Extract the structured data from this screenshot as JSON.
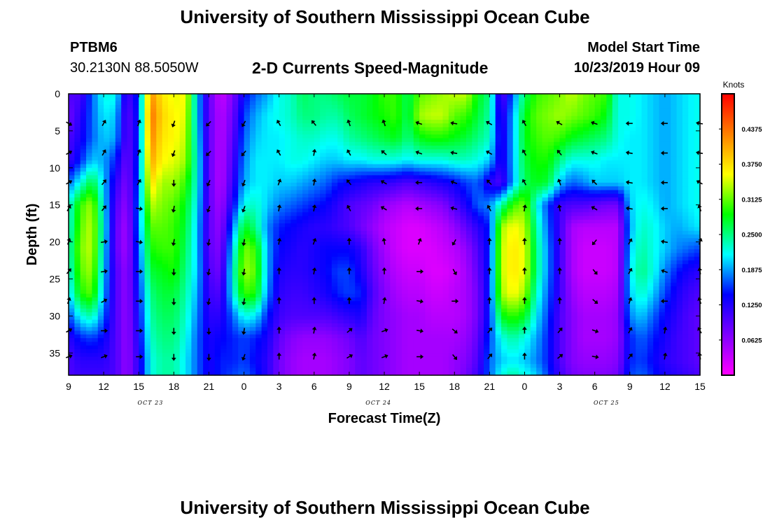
{
  "header": {
    "title": "University of Southern Mississippi Ocean Cube",
    "footer_title": "University of Southern Mississippi Ocean Cube",
    "station": "PTBM6",
    "coords": "30.2130N 88.5050W",
    "plot_title": "2-D Currents Speed-Magnitude",
    "model_start_label": "Model Start Time",
    "model_start_value": "10/23/2019 Hour 09"
  },
  "chart_data": {
    "type": "heatmap",
    "title": "2-D Currents Speed-Magnitude",
    "xlabel": "Forecast Time(Z)",
    "ylabel": "Depth (ft)",
    "x_ticks": [
      "9",
      "12",
      "15",
      "18",
      "21",
      "0",
      "3",
      "6",
      "9",
      "12",
      "15",
      "18",
      "21",
      "0",
      "3",
      "6",
      "9",
      "12",
      "15"
    ],
    "x_tick_hours": [
      0,
      3,
      6,
      9,
      12,
      15,
      18,
      21,
      24,
      27,
      30,
      33,
      36,
      39,
      42,
      45,
      48,
      51,
      54
    ],
    "date_labels": [
      {
        "label": "OCT 23",
        "hour": 7
      },
      {
        "label": "OCT 24",
        "hour": 26.5
      },
      {
        "label": "OCT 25",
        "hour": 46
      }
    ],
    "y_ticks": [
      0,
      5,
      10,
      15,
      20,
      25,
      30,
      35
    ],
    "xlim": [
      0,
      54
    ],
    "ylim": [
      38,
      0
    ],
    "colorbar": {
      "unit": "Knots",
      "ticks": [
        "0.4375",
        "0.3750",
        "0.3125",
        "0.2500",
        "0.1875",
        "0.1250",
        "0.0625"
      ],
      "tick_values": [
        0.4375,
        0.375,
        0.3125,
        0.25,
        0.1875,
        0.125,
        0.0625
      ],
      "range": [
        0,
        0.5
      ],
      "colors": [
        "#ff00ff",
        "#7f00ff",
        "#0000ff",
        "#00ffff",
        "#00ff00",
        "#ffff00",
        "#ff8000",
        "#ff0000"
      ]
    },
    "speed_grid": {
      "hours": [
        0,
        1,
        2,
        3,
        4,
        5,
        6,
        7,
        8,
        9,
        10,
        11,
        12,
        13,
        14,
        15,
        16,
        17,
        18,
        19,
        20,
        21,
        22,
        23,
        24,
        25,
        26,
        27,
        28,
        29,
        30,
        31,
        32,
        33,
        34,
        35,
        36,
        37,
        38,
        39,
        40,
        41,
        42,
        43,
        44,
        45,
        46,
        47,
        48,
        49,
        50,
        51,
        52,
        53,
        54
      ],
      "depths_ft": [
        0,
        3,
        6,
        9,
        12,
        15,
        18,
        21,
        24,
        27,
        30,
        33,
        36,
        38
      ],
      "values": [
        [
          0.1,
          0.1,
          0.17,
          0.22,
          0.22,
          0.1,
          0.16,
          0.42,
          0.37,
          0.35,
          0.36,
          0.2,
          0.09,
          0.03,
          0.07,
          0.14,
          0.17,
          0.19,
          0.22,
          0.23,
          0.26,
          0.25,
          0.25,
          0.26,
          0.27,
          0.27,
          0.28,
          0.3,
          0.3,
          0.26,
          0.31,
          0.32,
          0.33,
          0.34,
          0.34,
          0.28,
          0.25,
          0.09,
          0.17,
          0.26,
          0.3,
          0.31,
          0.32,
          0.34,
          0.32,
          0.31,
          0.3,
          0.22,
          0.22,
          0.21,
          0.2,
          0.19,
          0.2,
          0.21,
          0.22
        ],
        [
          0.08,
          0.12,
          0.17,
          0.21,
          0.2,
          0.09,
          0.15,
          0.44,
          0.38,
          0.36,
          0.35,
          0.2,
          0.09,
          0.04,
          0.08,
          0.16,
          0.19,
          0.21,
          0.22,
          0.23,
          0.25,
          0.25,
          0.24,
          0.24,
          0.26,
          0.27,
          0.28,
          0.29,
          0.3,
          0.26,
          0.33,
          0.34,
          0.34,
          0.31,
          0.3,
          0.27,
          0.24,
          0.11,
          0.19,
          0.28,
          0.31,
          0.32,
          0.33,
          0.32,
          0.31,
          0.3,
          0.28,
          0.22,
          0.22,
          0.21,
          0.2,
          0.19,
          0.2,
          0.21,
          0.22
        ],
        [
          0.1,
          0.13,
          0.17,
          0.2,
          0.19,
          0.09,
          0.15,
          0.43,
          0.37,
          0.36,
          0.34,
          0.21,
          0.09,
          0.04,
          0.09,
          0.17,
          0.2,
          0.21,
          0.21,
          0.22,
          0.23,
          0.23,
          0.22,
          0.22,
          0.24,
          0.25,
          0.26,
          0.27,
          0.28,
          0.25,
          0.28,
          0.29,
          0.29,
          0.28,
          0.27,
          0.25,
          0.23,
          0.12,
          0.19,
          0.28,
          0.3,
          0.31,
          0.3,
          0.28,
          0.27,
          0.26,
          0.25,
          0.22,
          0.21,
          0.21,
          0.2,
          0.19,
          0.2,
          0.21,
          0.22
        ],
        [
          0.11,
          0.15,
          0.2,
          0.19,
          0.15,
          0.08,
          0.16,
          0.41,
          0.36,
          0.35,
          0.33,
          0.22,
          0.09,
          0.04,
          0.1,
          0.18,
          0.21,
          0.21,
          0.21,
          0.22,
          0.22,
          0.21,
          0.2,
          0.2,
          0.21,
          0.21,
          0.22,
          0.22,
          0.22,
          0.21,
          0.22,
          0.22,
          0.22,
          0.23,
          0.23,
          0.22,
          0.2,
          0.12,
          0.19,
          0.27,
          0.29,
          0.29,
          0.25,
          0.22,
          0.22,
          0.22,
          0.21,
          0.21,
          0.21,
          0.21,
          0.2,
          0.19,
          0.2,
          0.21,
          0.22
        ],
        [
          0.17,
          0.22,
          0.27,
          0.2,
          0.12,
          0.07,
          0.17,
          0.38,
          0.33,
          0.33,
          0.3,
          0.22,
          0.09,
          0.04,
          0.11,
          0.19,
          0.21,
          0.21,
          0.2,
          0.2,
          0.19,
          0.18,
          0.17,
          0.15,
          0.14,
          0.13,
          0.12,
          0.12,
          0.11,
          0.1,
          0.11,
          0.12,
          0.13,
          0.14,
          0.16,
          0.17,
          0.12,
          0.1,
          0.19,
          0.26,
          0.28,
          0.27,
          0.2,
          0.17,
          0.18,
          0.2,
          0.2,
          0.2,
          0.21,
          0.21,
          0.2,
          0.19,
          0.2,
          0.21,
          0.22
        ],
        [
          0.22,
          0.3,
          0.33,
          0.21,
          0.1,
          0.06,
          0.18,
          0.34,
          0.32,
          0.31,
          0.28,
          0.21,
          0.09,
          0.05,
          0.13,
          0.22,
          0.23,
          0.2,
          0.18,
          0.17,
          0.16,
          0.15,
          0.14,
          0.12,
          0.1,
          0.09,
          0.08,
          0.06,
          0.05,
          0.04,
          0.05,
          0.06,
          0.07,
          0.1,
          0.13,
          0.17,
          0.18,
          0.24,
          0.3,
          0.32,
          0.22,
          0.16,
          0.11,
          0.1,
          0.1,
          0.09,
          0.08,
          0.08,
          0.2,
          0.22,
          0.21,
          0.19,
          0.2,
          0.21,
          0.22
        ],
        [
          0.22,
          0.31,
          0.34,
          0.22,
          0.09,
          0.05,
          0.18,
          0.31,
          0.31,
          0.3,
          0.27,
          0.2,
          0.09,
          0.06,
          0.17,
          0.28,
          0.25,
          0.18,
          0.15,
          0.14,
          0.13,
          0.12,
          0.12,
          0.11,
          0.1,
          0.08,
          0.06,
          0.04,
          0.03,
          0.02,
          0.02,
          0.03,
          0.04,
          0.06,
          0.09,
          0.12,
          0.15,
          0.33,
          0.36,
          0.34,
          0.24,
          0.17,
          0.11,
          0.05,
          0.04,
          0.04,
          0.04,
          0.04,
          0.19,
          0.23,
          0.22,
          0.2,
          0.19,
          0.2,
          0.21
        ],
        [
          0.23,
          0.32,
          0.34,
          0.21,
          0.09,
          0.05,
          0.17,
          0.29,
          0.3,
          0.3,
          0.26,
          0.2,
          0.09,
          0.07,
          0.2,
          0.32,
          0.3,
          0.19,
          0.14,
          0.13,
          0.12,
          0.13,
          0.14,
          0.14,
          0.14,
          0.12,
          0.08,
          0.05,
          0.03,
          0.02,
          0.02,
          0.02,
          0.03,
          0.04,
          0.06,
          0.1,
          0.15,
          0.34,
          0.37,
          0.35,
          0.25,
          0.18,
          0.11,
          0.05,
          0.03,
          0.03,
          0.03,
          0.04,
          0.2,
          0.24,
          0.22,
          0.2,
          0.18,
          0.17,
          0.16
        ],
        [
          0.22,
          0.31,
          0.33,
          0.2,
          0.1,
          0.06,
          0.16,
          0.27,
          0.28,
          0.29,
          0.25,
          0.2,
          0.1,
          0.08,
          0.22,
          0.33,
          0.31,
          0.19,
          0.13,
          0.12,
          0.12,
          0.13,
          0.14,
          0.16,
          0.16,
          0.13,
          0.09,
          0.06,
          0.04,
          0.03,
          0.03,
          0.02,
          0.02,
          0.03,
          0.05,
          0.09,
          0.15,
          0.34,
          0.37,
          0.35,
          0.25,
          0.18,
          0.11,
          0.05,
          0.03,
          0.03,
          0.03,
          0.04,
          0.21,
          0.25,
          0.22,
          0.18,
          0.15,
          0.13,
          0.12
        ],
        [
          0.2,
          0.29,
          0.31,
          0.19,
          0.1,
          0.06,
          0.15,
          0.25,
          0.27,
          0.27,
          0.24,
          0.19,
          0.11,
          0.1,
          0.21,
          0.3,
          0.29,
          0.18,
          0.12,
          0.11,
          0.11,
          0.12,
          0.13,
          0.15,
          0.16,
          0.15,
          0.1,
          0.07,
          0.05,
          0.04,
          0.04,
          0.03,
          0.03,
          0.04,
          0.05,
          0.08,
          0.15,
          0.33,
          0.36,
          0.33,
          0.23,
          0.17,
          0.11,
          0.06,
          0.04,
          0.04,
          0.04,
          0.05,
          0.2,
          0.23,
          0.2,
          0.16,
          0.13,
          0.11,
          0.1
        ],
        [
          0.16,
          0.22,
          0.24,
          0.17,
          0.1,
          0.06,
          0.14,
          0.24,
          0.26,
          0.26,
          0.23,
          0.18,
          0.12,
          0.12,
          0.17,
          0.22,
          0.21,
          0.15,
          0.11,
          0.1,
          0.1,
          0.1,
          0.1,
          0.11,
          0.12,
          0.13,
          0.09,
          0.07,
          0.06,
          0.05,
          0.05,
          0.04,
          0.04,
          0.04,
          0.05,
          0.08,
          0.15,
          0.28,
          0.3,
          0.28,
          0.21,
          0.16,
          0.1,
          0.07,
          0.05,
          0.05,
          0.05,
          0.06,
          0.18,
          0.2,
          0.17,
          0.14,
          0.12,
          0.1,
          0.09
        ],
        [
          0.12,
          0.15,
          0.16,
          0.14,
          0.1,
          0.06,
          0.13,
          0.23,
          0.25,
          0.25,
          0.22,
          0.17,
          0.13,
          0.14,
          0.15,
          0.16,
          0.15,
          0.13,
          0.09,
          0.07,
          0.06,
          0.06,
          0.06,
          0.07,
          0.08,
          0.1,
          0.08,
          0.07,
          0.06,
          0.05,
          0.05,
          0.05,
          0.05,
          0.05,
          0.06,
          0.09,
          0.16,
          0.22,
          0.24,
          0.22,
          0.19,
          0.15,
          0.1,
          0.07,
          0.05,
          0.05,
          0.05,
          0.06,
          0.15,
          0.17,
          0.15,
          0.13,
          0.11,
          0.1,
          0.09
        ],
        [
          0.1,
          0.12,
          0.12,
          0.12,
          0.1,
          0.06,
          0.12,
          0.22,
          0.24,
          0.24,
          0.21,
          0.17,
          0.13,
          0.15,
          0.15,
          0.16,
          0.14,
          0.12,
          0.08,
          0.06,
          0.05,
          0.05,
          0.05,
          0.06,
          0.07,
          0.09,
          0.08,
          0.07,
          0.06,
          0.05,
          0.05,
          0.05,
          0.05,
          0.06,
          0.07,
          0.1,
          0.17,
          0.2,
          0.21,
          0.2,
          0.18,
          0.15,
          0.1,
          0.07,
          0.06,
          0.06,
          0.06,
          0.07,
          0.15,
          0.16,
          0.14,
          0.12,
          0.11,
          0.1,
          0.09
        ],
        [
          0.1,
          0.11,
          0.11,
          0.11,
          0.1,
          0.06,
          0.12,
          0.22,
          0.24,
          0.24,
          0.21,
          0.17,
          0.13,
          0.15,
          0.16,
          0.17,
          0.15,
          0.12,
          0.08,
          0.06,
          0.05,
          0.05,
          0.05,
          0.06,
          0.07,
          0.09,
          0.08,
          0.07,
          0.06,
          0.05,
          0.05,
          0.05,
          0.05,
          0.06,
          0.08,
          0.11,
          0.17,
          0.22,
          0.24,
          0.22,
          0.2,
          0.16,
          0.11,
          0.08,
          0.07,
          0.07,
          0.07,
          0.08,
          0.16,
          0.17,
          0.15,
          0.13,
          0.12,
          0.11,
          0.1
        ]
      ]
    },
    "vectors": {
      "hours": [
        0,
        3,
        6,
        9,
        12,
        15,
        18,
        21,
        24,
        27,
        30,
        33,
        36,
        39,
        42,
        45,
        48,
        51,
        54
      ],
      "depths_ft": [
        4,
        8,
        12,
        15.5,
        20,
        24,
        28,
        32,
        35.5
      ],
      "angles_deg_cw_from_north": [
        [
          120,
          30,
          20,
          200,
          225,
          210,
          330,
          320,
          340,
          340,
          290,
          280,
          300,
          330,
          300,
          290,
          270,
          270,
          280
        ],
        [
          60,
          30,
          20,
          200,
          225,
          220,
          330,
          10,
          330,
          310,
          290,
          280,
          300,
          330,
          320,
          290,
          280,
          270,
          280
        ],
        [
          60,
          40,
          30,
          180,
          205,
          200,
          20,
          10,
          320,
          300,
          270,
          290,
          315,
          330,
          340,
          315,
          280,
          270,
          300
        ],
        [
          30,
          40,
          100,
          190,
          200,
          200,
          10,
          10,
          330,
          300,
          270,
          285,
          330,
          10,
          350,
          300,
          280,
          270,
          340
        ],
        [
          20,
          80,
          100,
          190,
          190,
          190,
          10,
          20,
          0,
          350,
          20,
          210,
          0,
          0,
          0,
          220,
          30,
          280,
          20
        ],
        [
          40,
          80,
          90,
          180,
          190,
          190,
          0,
          10,
          0,
          0,
          90,
          150,
          0,
          0,
          0,
          140,
          30,
          290,
          350
        ],
        [
          20,
          60,
          90,
          180,
          190,
          190,
          0,
          0,
          0,
          10,
          100,
          90,
          0,
          0,
          0,
          130,
          20,
          270,
          340
        ],
        [
          60,
          90,
          90,
          180,
          180,
          190,
          0,
          10,
          50,
          70,
          100,
          130,
          40,
          0,
          40,
          110,
          30,
          10,
          330
        ],
        [
          70,
          70,
          90,
          180,
          180,
          200,
          0,
          10,
          60,
          70,
          90,
          140,
          40,
          0,
          50,
          100,
          40,
          10,
          350
        ]
      ]
    }
  }
}
